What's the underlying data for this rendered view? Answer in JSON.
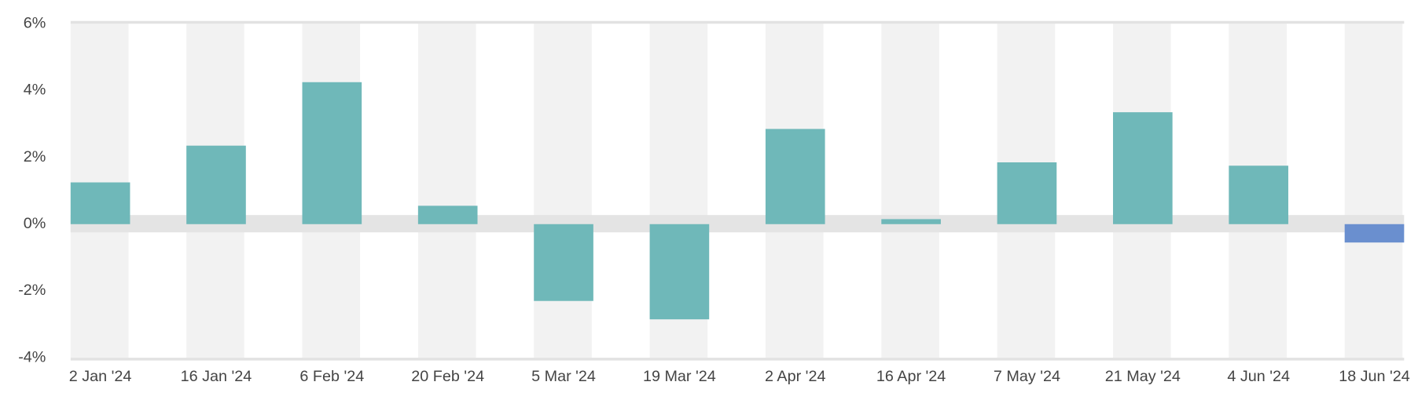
{
  "chart_data": {
    "type": "bar",
    "categories": [
      "2 Jan '24",
      "16 Jan '24",
      "6 Feb '24",
      "20 Feb '24",
      "5 Mar '24",
      "19 Mar '24",
      "2 Apr '24",
      "16 Apr '24",
      "7 May '24",
      "21 May '24",
      "4 Jun '24",
      "18 Jun '24"
    ],
    "values": [
      1.25,
      2.35,
      4.25,
      0.55,
      -2.3,
      -2.85,
      2.85,
      0.15,
      1.85,
      3.35,
      1.75,
      -0.55
    ],
    "colors": [
      "#6fb8b9",
      "#6fb8b9",
      "#6fb8b9",
      "#6fb8b9",
      "#6fb8b9",
      "#6fb8b9",
      "#6fb8b9",
      "#6fb8b9",
      "#6fb8b9",
      "#6fb8b9",
      "#6fb8b9",
      "#6a8fcf"
    ],
    "ylim": [
      -4,
      6
    ],
    "yticks": [
      {
        "value": -4,
        "label": "-4%"
      },
      {
        "value": -2,
        "label": "-2%"
      },
      {
        "value": 0,
        "label": "0%"
      },
      {
        "value": 2,
        "label": "2%"
      },
      {
        "value": 4,
        "label": "4%"
      },
      {
        "value": 6,
        "label": "6%"
      }
    ]
  }
}
